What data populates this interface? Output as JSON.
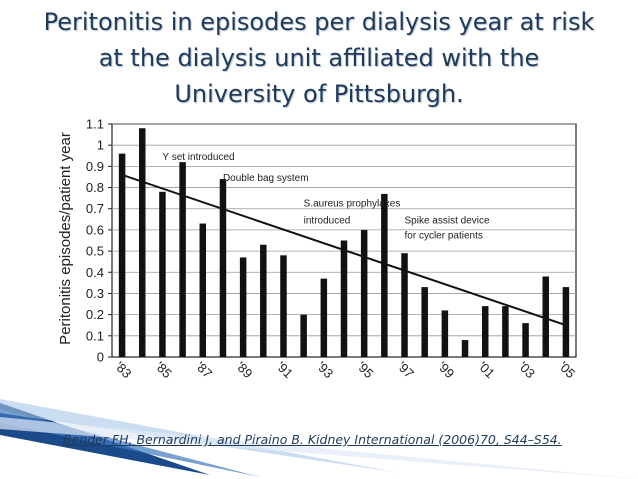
{
  "slide": {
    "title_lines": [
      "Peritonitis in episodes per dialysis year at risk",
      "at the dialysis unit affiliated with the",
      "University of Pittsburgh."
    ],
    "citation": "Bender FH, Bernardini J, and Piraino B. Kidney International (2006)70, S44–S54.",
    "title_color": "#1f3b5c",
    "accent_color": "#1a4a8a"
  },
  "chart_data": {
    "type": "bar",
    "ylabel": "Peritonitis episodes/patient year",
    "xlabel": "",
    "ylim": [
      0,
      1.1
    ],
    "yticks": [
      "0",
      "0.1",
      "0.2",
      "0.3",
      "0.4",
      "0.5",
      "0.6",
      "0.7",
      "0.8",
      "0.9",
      "1",
      "1.1"
    ],
    "xtick_labels": [
      "'83",
      "'85",
      "'87",
      "'89",
      "'91",
      "'93",
      "'95",
      "'97",
      "'99",
      "'01",
      "'03",
      "'05"
    ],
    "categories": [
      "1983",
      "1984",
      "1985",
      "1986",
      "1987",
      "1988",
      "1989",
      "1990",
      "1991",
      "1992",
      "1993",
      "1994",
      "1995",
      "1996",
      "1997",
      "1998",
      "1999",
      "2000",
      "2001",
      "2002",
      "2003",
      "2004",
      "2005"
    ],
    "values": [
      0.96,
      1.08,
      0.78,
      0.92,
      0.63,
      0.84,
      0.47,
      0.53,
      0.48,
      0.2,
      0.37,
      0.55,
      0.6,
      0.77,
      0.49,
      0.33,
      0.22,
      0.08,
      0.24,
      0.24,
      0.16,
      0.38,
      0.33
    ],
    "trendline": {
      "x": [
        "1983",
        "2005"
      ],
      "y": [
        0.86,
        0.15
      ]
    },
    "grid": true,
    "annotations": [
      {
        "text": "Y set introduced",
        "x": "1985",
        "y": 0.93
      },
      {
        "text": "Double bag system",
        "x": "1988",
        "y": 0.83
      },
      {
        "text": "S.aureus prophylaxes",
        "x": "1992",
        "y": 0.71
      },
      {
        "text": "introduced",
        "x": "1992",
        "y": 0.63
      },
      {
        "text": "Spike assist device",
        "x": "1997",
        "y": 0.63
      },
      {
        "text": "for cycler patients",
        "x": "1997",
        "y": 0.56
      }
    ]
  }
}
